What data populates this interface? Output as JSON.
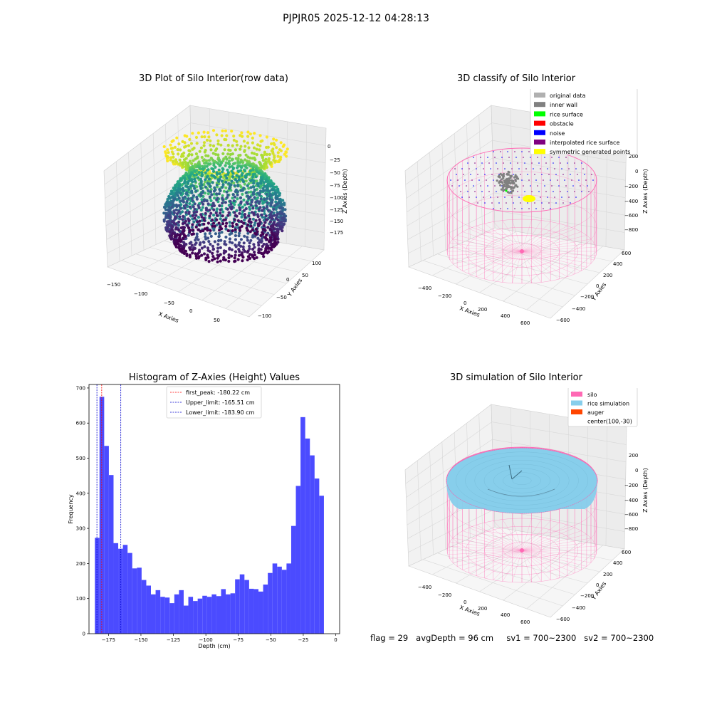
{
  "figure": {
    "suptitle": "PJPJR05 2025-12-12 04:28:13"
  },
  "status": {
    "flag": "flag = 29",
    "avg_depth": "avgDepth = 96 cm",
    "sv1": "sv1 = 700~2300",
    "sv2": "sv2 = 700~2300"
  },
  "colors": {
    "histogram_bar": "#4b4bff",
    "peak_line": "#ff0000",
    "limit_line": "#0000cc",
    "silo_wire": "#ff69b4",
    "rice_simulation": "#87ceeb",
    "auger": "#ff4500",
    "inner_wall": "#808080",
    "rice_surface": "#00ff00",
    "obstacle": "#ff0000",
    "noise": "#0000ff",
    "interpolated": "#800080",
    "symmetric": "#ffff00",
    "original": "#b0b0b0"
  },
  "chart_data": [
    {
      "type": "scatter3d",
      "title": "3D Plot of Silo Interior(row data)",
      "xlabel": "X Axies",
      "ylabel": "Y Axies",
      "zlabel": "Z Axies (Depth)",
      "x_ticks": [
        "−150",
        "−100",
        "−50",
        "0",
        "50"
      ],
      "y_ticks": [
        "−100",
        "−50",
        "0",
        "50",
        "100"
      ],
      "z_ticks": [
        "0",
        "−25",
        "−50",
        "−75",
        "−100",
        "−125",
        "−150",
        "−175"
      ],
      "colormap": "viridis"
    },
    {
      "type": "scatter3d",
      "title": "3D classify of Silo Interior",
      "xlabel": "X Axies",
      "ylabel": "Y Axies",
      "zlabel": "Z Axies (Depth)",
      "x_ticks": [
        "−400",
        "−200",
        "0",
        "200",
        "400",
        "600"
      ],
      "y_ticks": [
        "−600",
        "−400",
        "−200",
        "0",
        "200",
        "400",
        "600"
      ],
      "z_ticks": [
        "200",
        "0",
        "−200",
        "−400",
        "−600",
        "−800"
      ],
      "legend_position": "top-right",
      "legend": [
        {
          "label": "original data",
          "color": "#b0b0b0"
        },
        {
          "label": "inner wall",
          "color": "#808080"
        },
        {
          "label": "rice surface",
          "color": "#00ff00"
        },
        {
          "label": "obstacle",
          "color": "#ff0000"
        },
        {
          "label": "noise",
          "color": "#0000ff"
        },
        {
          "label": "interpolated rice surface",
          "color": "#800080"
        },
        {
          "label": "symmetric generated points",
          "color": "#ffff00"
        }
      ]
    },
    {
      "type": "bar",
      "title": "Histogram of Z-Axies (Height) Values",
      "xlabel": "Depth (cm)",
      "ylabel": "Frequency",
      "xlim": [
        -190,
        3
      ],
      "ylim": [
        0,
        710
      ],
      "x_ticks": [
        -175,
        -150,
        -125,
        -100,
        -75,
        -50,
        -25,
        0
      ],
      "y_ticks": [
        0,
        100,
        200,
        300,
        400,
        500,
        600,
        700
      ],
      "bin_start": -185.5,
      "bin_width": 3.6,
      "values": [
        273,
        675,
        535,
        452,
        258,
        242,
        253,
        230,
        186,
        188,
        153,
        137,
        112,
        124,
        105,
        103,
        87,
        112,
        124,
        80,
        105,
        93,
        100,
        108,
        105,
        112,
        107,
        127,
        112,
        115,
        155,
        169,
        153,
        128,
        127,
        120,
        140,
        173,
        200,
        191,
        182,
        200,
        307,
        421,
        617,
        556,
        508,
        442,
        393
      ],
      "vlines": [
        {
          "value": -180.22,
          "color": "#ff0000",
          "label": "first_peak: -180.22 cm"
        },
        {
          "value": -165.51,
          "color": "#0000cc",
          "label": "Upper_limit: -165.51 cm"
        },
        {
          "value": -183.9,
          "color": "#0000cc",
          "label": "Lower_limit: -183.90 cm"
        }
      ],
      "legend_position": "top-center"
    },
    {
      "type": "surface3d",
      "title": "3D simulation of Silo Interior",
      "xlabel": "X Axies",
      "ylabel": "Y Axies",
      "zlabel": "Z Axies (Depth)",
      "x_ticks": [
        "−400",
        "−200",
        "0",
        "200",
        "400",
        "600"
      ],
      "y_ticks": [
        "−600",
        "−400",
        "−200",
        "0",
        "200",
        "400",
        "600"
      ],
      "z_ticks": [
        "200",
        "0",
        "−200",
        "−400",
        "−600",
        "−800"
      ],
      "legend_position": "top-right",
      "legend": [
        {
          "label": "silo",
          "color": "#ff69b4"
        },
        {
          "label": "rice simulation",
          "color": "#87ceeb"
        },
        {
          "label": "auger",
          "color": "#ff4500"
        },
        {
          "label": "center(100,-30)",
          "color": ""
        }
      ]
    }
  ]
}
